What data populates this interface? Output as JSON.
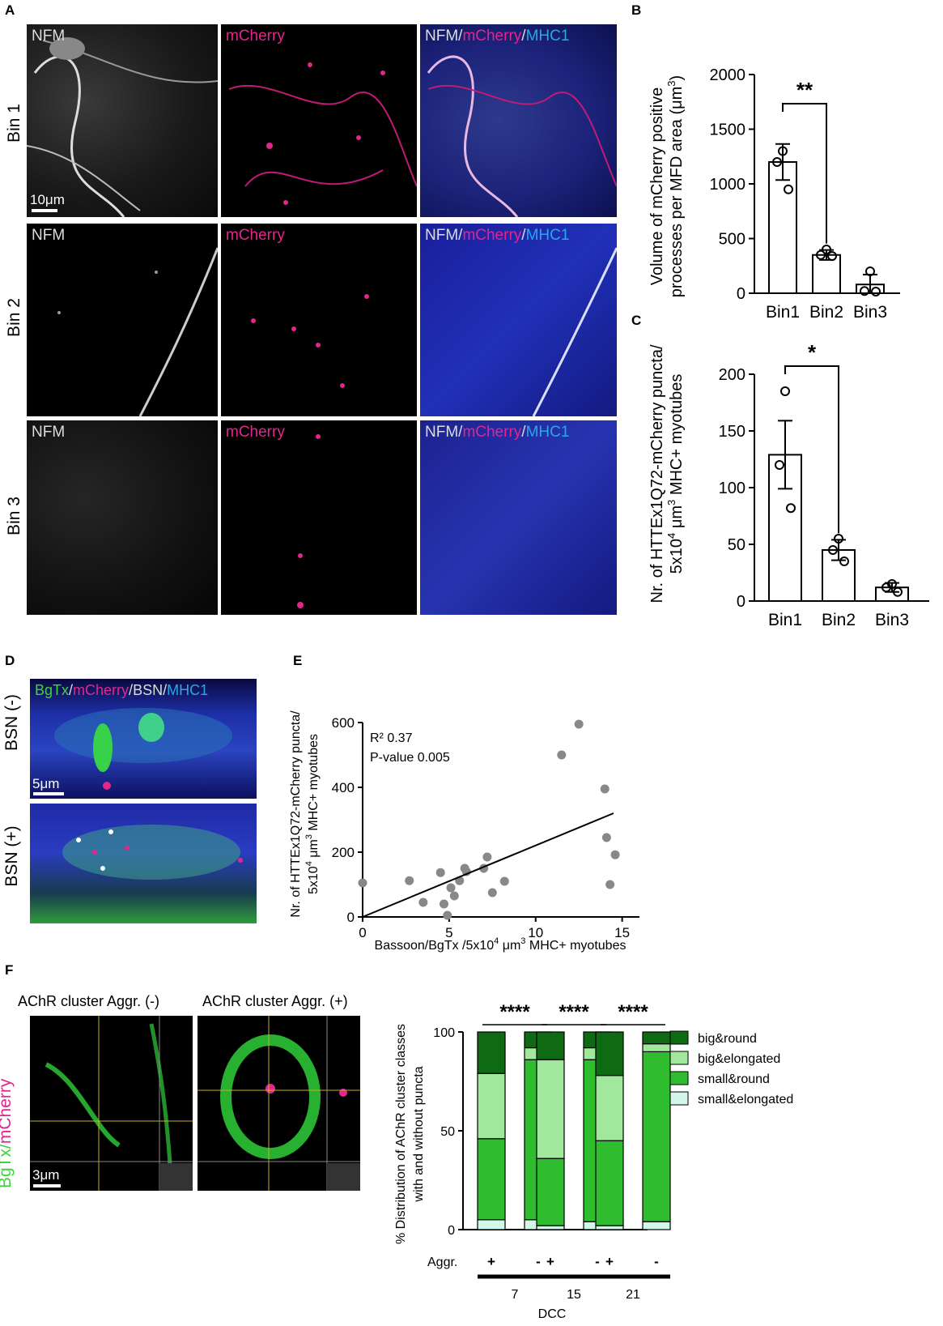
{
  "panelA": {
    "label": "A",
    "rows": [
      "Bin 1",
      "Bin 2",
      "Bin 3"
    ],
    "channels": {
      "nfm": "NFM",
      "mcherry": "mCherry",
      "sep": "/",
      "mhc1": "MHC1"
    },
    "scalebar": "10μm"
  },
  "panelB": {
    "label": "B",
    "ylabel_line1": "Volume of mCherry positive",
    "ylabel_line2": "processes per MFD area (μm",
    "ylabel_sup": "3",
    "ylabel_end": ")",
    "significance": "**"
  },
  "panelC": {
    "label": "C",
    "ylabel_line1": "Nr. of HTTEx1Q72-mCherry puncta/",
    "ylabel_line2": "5x10",
    "ylabel_sup": "4",
    "ylabel_rest": " μm",
    "ylabel_sup2": "3",
    "ylabel_end": " MHC+ myotubes",
    "significance": "*"
  },
  "panelD": {
    "label": "D",
    "channels": {
      "bgtx": "BgTx",
      "mcherry": "mCherry",
      "bsn": "BSN",
      "mhc1": "MHC1",
      "sep": "/"
    },
    "rows": [
      "BSN (-)",
      "BSN (+)"
    ],
    "scalebar": "5μm"
  },
  "panelE": {
    "label": "E",
    "r2": "R² 0.37",
    "pvalue": "P-value 0.005",
    "ylabel_line1": "Nr. of HTTEx1Q72-mCherry puncta/",
    "ylabel_line2_a": "5x10",
    "ylabel_line2_sup": "4",
    "ylabel_line2_b": " μm",
    "ylabel_line2_sup2": "3",
    "ylabel_line2_c": " MHC+ myotubes",
    "xlabel_a": "Bassoon/BgTx /5x10",
    "xlabel_sup": "4",
    "xlabel_b": " μm",
    "xlabel_sup2": "3",
    "xlabel_c": " MHC+ myotubes"
  },
  "panelF": {
    "label": "F",
    "img_titles": [
      "AChR cluster Aggr. (-)",
      "AChR cluster Aggr. (+)"
    ],
    "side_label": {
      "bgtx": "BgTx",
      "sep": "/",
      "mcherry": "mCherry"
    },
    "scalebar": "3μm",
    "ylabel_line1": "% Distribution of AChR cluster classes",
    "ylabel_line2": "with and without puncta",
    "aggr_label": "Aggr.",
    "aggr_signs": [
      "+",
      "-",
      "+",
      "-",
      "+",
      "-"
    ],
    "dcc_groups": [
      "7",
      "15",
      "21"
    ],
    "xlabel": "DCC",
    "significance": [
      "****",
      "****",
      "****"
    ],
    "legend": [
      "big&round",
      "big&elongated",
      "small&round",
      "small&elongated"
    ]
  },
  "colors": {
    "big_round": "#0f6a14",
    "big_elongated": "#a2e89c",
    "small_round": "#2fbd2f",
    "small_elongated": "#d2f6e8",
    "magenta": "#e2268e",
    "cyan": "#2aa7e6",
    "point": "#888888"
  },
  "chart_data": [
    {
      "type": "bar",
      "panel": "B",
      "categories": [
        "Bin1",
        "Bin2",
        "Bin3"
      ],
      "values": [
        1200,
        350,
        80
      ],
      "sem": [
        165,
        45,
        90
      ],
      "points": [
        [
          1300,
          1200,
          950
        ],
        [
          400,
          350,
          340
        ],
        [
          200,
          20,
          15
        ]
      ],
      "ylim": [
        0,
        2000
      ],
      "yticks": [
        0,
        500,
        1000,
        1500,
        2000
      ]
    },
    {
      "type": "bar",
      "panel": "C",
      "categories": [
        "Bin1",
        "Bin2",
        "Bin3"
      ],
      "values": [
        129,
        45,
        12
      ],
      "sem": [
        30,
        9,
        4
      ],
      "points": [
        [
          185,
          120,
          82
        ],
        [
          55,
          45,
          35
        ],
        [
          15,
          12,
          8
        ]
      ],
      "ylim": [
        0,
        200
      ],
      "yticks": [
        0,
        50,
        100,
        150,
        200
      ]
    },
    {
      "type": "scatter",
      "panel": "E",
      "x": [
        0,
        2.7,
        3.5,
        4.5,
        4.7,
        4.9,
        5.1,
        5.3,
        5.6,
        5.9,
        6.0,
        7.0,
        7.2,
        7.5,
        8.2,
        11.5,
        12.5,
        14.0,
        14.1,
        14.3,
        14.6
      ],
      "y": [
        105,
        112,
        45,
        137,
        40,
        5,
        90,
        65,
        112,
        150,
        140,
        150,
        185,
        75,
        110,
        500,
        595,
        395,
        245,
        100,
        192
      ],
      "fit_line": {
        "x": [
          0,
          14.5
        ],
        "y": [
          0,
          320
        ]
      },
      "xlim": [
        0,
        16
      ],
      "ylim": [
        0,
        600
      ],
      "xticks": [
        0,
        5,
        10,
        15
      ],
      "yticks": [
        0,
        200,
        400,
        600
      ]
    },
    {
      "type": "bar",
      "stacked": true,
      "panel": "F",
      "categories": [
        "7 +",
        "7 -",
        "15 +",
        "15 -",
        "21 +",
        "21 -"
      ],
      "series": [
        {
          "name": "small&elongated",
          "values": [
            5,
            5,
            2,
            4,
            2,
            4
          ]
        },
        {
          "name": "small&round",
          "values": [
            41,
            81,
            34,
            82,
            43,
            86
          ]
        },
        {
          "name": "big&elongated",
          "values": [
            33,
            6,
            50,
            6,
            33,
            4
          ]
        },
        {
          "name": "big&round",
          "values": [
            21,
            8,
            14,
            8,
            22,
            6
          ]
        }
      ],
      "ylim": [
        0,
        100
      ],
      "yticks": [
        0,
        50,
        100
      ]
    }
  ]
}
